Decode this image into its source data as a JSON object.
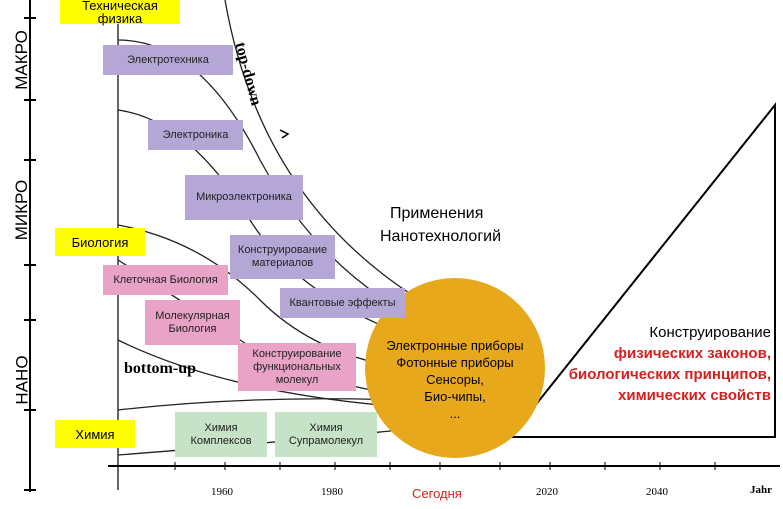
{
  "scale_labels": [
    "МАКРО",
    "МИКРО",
    "НАНО"
  ],
  "timeline": {
    "years": [
      "1960",
      "1980",
      "Сегодня",
      "2020",
      "2040"
    ],
    "axis_label": "Jahr"
  },
  "disciplines": {
    "physics": "Техническая физика",
    "biology": "Биология",
    "chemistry": "Химия"
  },
  "physics_fields": [
    "Электротехника",
    "Электроника",
    "Микроэлектроника",
    "Конструирование материалов",
    "Квантовые эффекты"
  ],
  "biology_fields": [
    "Клеточная Биология",
    "Молекулярная Биология",
    "Конструирование функциональных молекул"
  ],
  "chemistry_fields": [
    "Химия Комплексов",
    "Химия Супрамолекул"
  ],
  "approaches": {
    "top_down": "top-down",
    "bottom_up": "bottom-up"
  },
  "applications_title": [
    "Применения",
    "Нанотехнологий"
  ],
  "applications": [
    "Электронные приборы",
    "Фотонные приборы",
    "Сенсоры,",
    "Био-чипы,",
    "..."
  ],
  "design": {
    "title": "Конструирование",
    "items": [
      "физических законов,",
      "биологических принципов,",
      "химических свойств"
    ]
  }
}
